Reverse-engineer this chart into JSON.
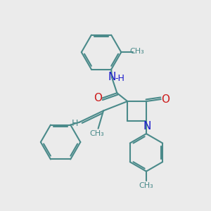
{
  "bg_color": "#ebebeb",
  "bond_color": "#4a8a8a",
  "bond_width": 1.5,
  "N_color": "#1a1acc",
  "O_color": "#cc1a1a",
  "font_size_atom": 11,
  "font_size_small": 9,
  "figsize": [
    3.0,
    3.0
  ],
  "dpi": 100,
  "xlim": [
    0,
    10
  ],
  "ylim": [
    0,
    10
  ]
}
